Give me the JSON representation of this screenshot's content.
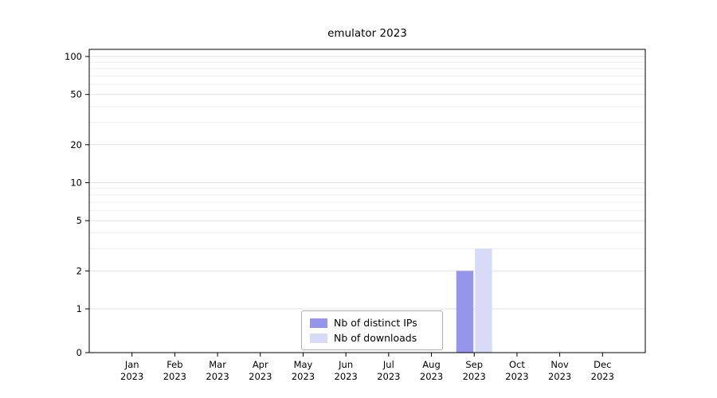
{
  "chart_data": {
    "type": "bar",
    "title": "emulator 2023",
    "categories": [
      "Jan",
      "Feb",
      "Mar",
      "Apr",
      "May",
      "Jun",
      "Jul",
      "Aug",
      "Sep",
      "Oct",
      "Nov",
      "Dec"
    ],
    "year": "2023",
    "series": [
      {
        "name": "Nb of distinct IPs",
        "color": "#9595ec",
        "values": [
          0,
          0,
          0,
          0,
          0,
          0,
          0,
          0,
          2,
          0,
          0,
          0
        ]
      },
      {
        "name": "Nb of downloads",
        "color": "#d9d9f8",
        "values": [
          0,
          0,
          0,
          0,
          0,
          0,
          0,
          0,
          3,
          0,
          0,
          0
        ]
      }
    ],
    "y_ticks": [
      0,
      1,
      2,
      5,
      10,
      20,
      50,
      100
    ],
    "y_minor_ticks": [
      3,
      4,
      6,
      7,
      8,
      9,
      30,
      40,
      60,
      70,
      80,
      90
    ],
    "ylim": [
      0,
      100
    ],
    "y_scale": "symlog",
    "grid": "horizontal",
    "legend_position": "lower center",
    "grid_color_major": "#e2e2e2",
    "grid_color_minor": "#efefef",
    "axis_color": "#000000"
  }
}
